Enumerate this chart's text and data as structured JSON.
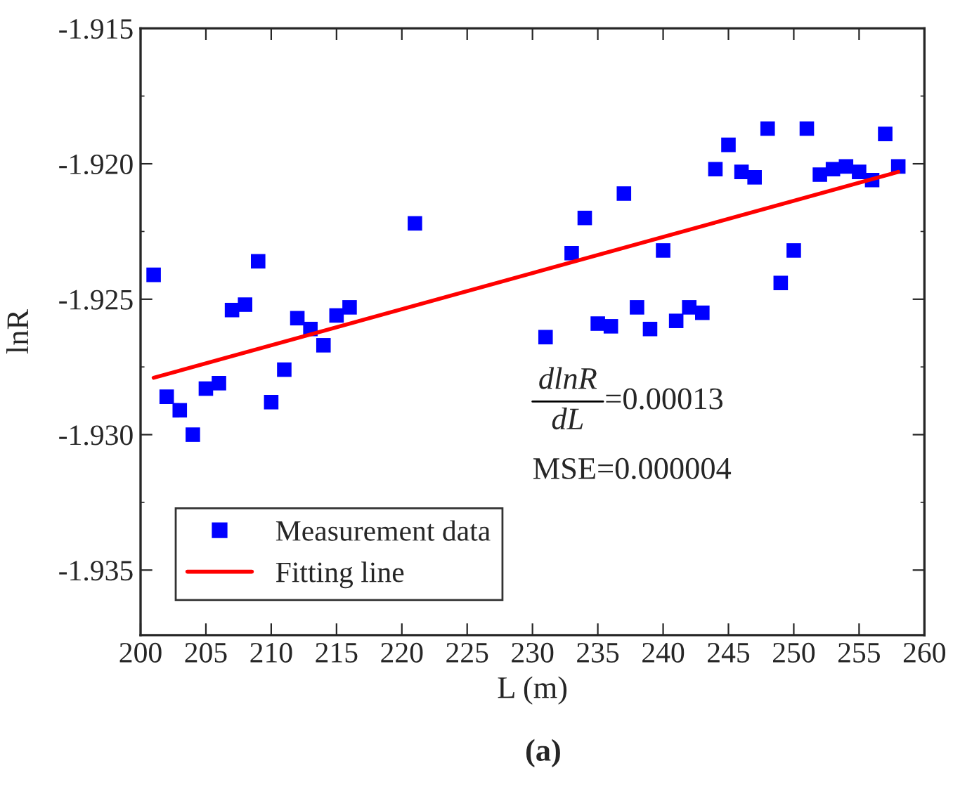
{
  "chart_data": {
    "type": "scatter",
    "xlabel": "L (m)",
    "ylabel": "lnR",
    "xlim": [
      200,
      260
    ],
    "xticks": [
      200,
      205,
      210,
      215,
      220,
      225,
      230,
      235,
      240,
      245,
      250,
      255,
      260
    ],
    "ylim": [
      -1.9374,
      -1.915
    ],
    "yticks": [
      {
        "value": -1.915,
        "label": "-1.915"
      },
      {
        "value": -1.92,
        "label": "-1.920"
      },
      {
        "value": -1.925,
        "label": "-1.925"
      },
      {
        "value": -1.93,
        "label": "-1.930"
      },
      {
        "value": -1.935,
        "label": "-1.935"
      }
    ],
    "grid": false,
    "legend": "bottom left",
    "series": [
      {
        "name": "Measurement data",
        "marker": "square",
        "color": "#0000ff",
        "x": [
          201,
          202,
          203,
          204,
          205,
          206,
          207,
          208,
          209,
          210,
          211,
          212,
          213,
          214,
          215,
          216,
          221,
          231,
          233,
          234,
          235,
          236,
          237,
          238,
          239,
          240,
          241,
          242,
          243,
          244,
          245,
          246,
          247,
          248,
          249,
          250,
          251,
          252,
          253,
          254,
          255,
          256,
          257,
          258
        ],
        "values": [
          -1.9241,
          -1.9286,
          -1.9291,
          -1.93,
          -1.9283,
          -1.9281,
          -1.9254,
          -1.9252,
          -1.9236,
          -1.9288,
          -1.9276,
          -1.9257,
          -1.9261,
          -1.9267,
          -1.9256,
          -1.9253,
          -1.9222,
          -1.9264,
          -1.9233,
          -1.922,
          -1.9259,
          -1.926,
          -1.9211,
          -1.9253,
          -1.9261,
          -1.9232,
          -1.9258,
          -1.9253,
          -1.9255,
          -1.9202,
          -1.9193,
          -1.9203,
          -1.9205,
          -1.9187,
          -1.9244,
          -1.9232,
          -1.9187,
          -1.9204,
          -1.9202,
          -1.9201,
          -1.9203,
          -1.9206,
          -1.9189,
          -1.9201
        ]
      },
      {
        "name": "Fitting line",
        "type": "line",
        "color": "#ff0000",
        "x": [
          201,
          258
        ],
        "values": [
          -1.9279,
          -1.9203
        ]
      }
    ],
    "annotations": [
      "dlnR",
      "dL",
      "=0.00013",
      "MSE=0.000004",
      "(a)"
    ]
  }
}
